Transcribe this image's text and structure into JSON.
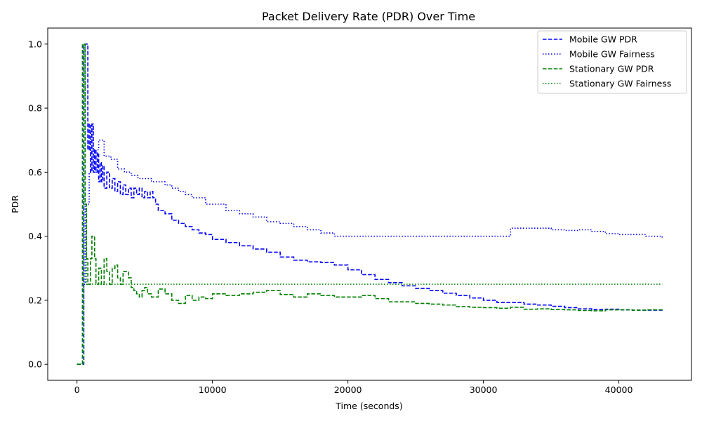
{
  "chart_data": {
    "type": "line",
    "title": "Packet Delivery Rate (PDR) Over Time",
    "xlabel": "Time (seconds)",
    "ylabel": "PDR",
    "xlim": [
      -2160,
      45360
    ],
    "ylim": [
      -0.05,
      1.05
    ],
    "xticks": [
      0,
      10000,
      20000,
      30000,
      40000
    ],
    "yticks": [
      0.0,
      0.2,
      0.4,
      0.6,
      0.8,
      1.0
    ],
    "xtick_labels": [
      "0",
      "10000",
      "20000",
      "30000",
      "40000"
    ],
    "ytick_labels": [
      "0.0",
      "0.2",
      "0.4",
      "0.6",
      "0.8",
      "1.0"
    ],
    "grid": false,
    "legend_position": "top-right",
    "series": [
      {
        "name": "Mobile GW PDR",
        "color": "#0000ff",
        "dash": "dashed",
        "x": [
          0,
          200,
          400,
          500,
          600,
          700,
          800,
          900,
          1000,
          1100,
          1200,
          1300,
          1400,
          1500,
          1600,
          1700,
          1800,
          1900,
          2000,
          2200,
          2400,
          2600,
          2800,
          3000,
          3200,
          3400,
          3600,
          3800,
          4000,
          4200,
          4400,
          4600,
          4800,
          5000,
          5200,
          5400,
          5600,
          5800,
          6000,
          6500,
          7000,
          7500,
          8000,
          8500,
          9000,
          9500,
          10000,
          11000,
          12000,
          13000,
          14000,
          15000,
          16000,
          17000,
          18000,
          19000,
          20000,
          21000,
          22000,
          23000,
          24000,
          25000,
          26000,
          27000,
          28000,
          29000,
          30000,
          31000,
          32000,
          33000,
          34000,
          35000,
          36000,
          37000,
          38000,
          39000,
          40000,
          41000,
          42000,
          43200
        ],
        "y": [
          0.0,
          0.0,
          0.0,
          1.0,
          1.0,
          1.0,
          0.67,
          0.75,
          0.6,
          0.75,
          0.6,
          0.67,
          0.6,
          0.66,
          0.57,
          0.63,
          0.57,
          0.62,
          0.55,
          0.6,
          0.55,
          0.58,
          0.54,
          0.57,
          0.53,
          0.56,
          0.53,
          0.55,
          0.52,
          0.55,
          0.53,
          0.55,
          0.52,
          0.54,
          0.52,
          0.54,
          0.52,
          0.5,
          0.48,
          0.47,
          0.45,
          0.44,
          0.43,
          0.42,
          0.41,
          0.405,
          0.39,
          0.38,
          0.37,
          0.36,
          0.35,
          0.335,
          0.325,
          0.32,
          0.318,
          0.31,
          0.295,
          0.28,
          0.265,
          0.255,
          0.245,
          0.237,
          0.23,
          0.222,
          0.215,
          0.207,
          0.2,
          0.193,
          0.193,
          0.188,
          0.185,
          0.181,
          0.177,
          0.173,
          0.171,
          0.172,
          0.17,
          0.169,
          0.169,
          0.168
        ]
      },
      {
        "name": "Mobile GW Fairness",
        "color": "#0000ff",
        "dash": "dotted",
        "x": [
          0,
          200,
          400,
          500,
          600,
          700,
          800,
          900,
          1000,
          1100,
          1200,
          1400,
          1600,
          1800,
          2000,
          2500,
          3000,
          3500,
          4000,
          4500,
          5000,
          5500,
          6000,
          6500,
          7000,
          7500,
          8000,
          8500,
          9000,
          9500,
          10000,
          11000,
          12000,
          13000,
          14000,
          15000,
          16000,
          17000,
          18000,
          19000,
          20000,
          21000,
          22000,
          23000,
          24000,
          25000,
          26000,
          27000,
          28000,
          29000,
          30000,
          31000,
          31900,
          32000,
          33000,
          34000,
          35000,
          36000,
          37000,
          38000,
          39000,
          40000,
          41000,
          42000,
          43200
        ],
        "y": [
          0.0,
          0.0,
          0.0,
          0.25,
          0.5,
          0.5,
          0.5,
          0.6,
          0.7,
          0.75,
          0.6,
          0.67,
          0.7,
          0.7,
          0.65,
          0.64,
          0.61,
          0.6,
          0.59,
          0.58,
          0.58,
          0.57,
          0.57,
          0.56,
          0.55,
          0.54,
          0.53,
          0.52,
          0.52,
          0.5,
          0.5,
          0.48,
          0.47,
          0.46,
          0.445,
          0.44,
          0.43,
          0.42,
          0.41,
          0.4,
          0.4,
          0.4,
          0.4,
          0.4,
          0.4,
          0.4,
          0.4,
          0.4,
          0.4,
          0.4,
          0.4,
          0.4,
          0.4,
          0.425,
          0.425,
          0.425,
          0.42,
          0.418,
          0.42,
          0.415,
          0.408,
          0.405,
          0.405,
          0.4,
          0.395
        ]
      },
      {
        "name": "Stationary GW PDR",
        "color": "#008000",
        "dash": "dashed",
        "x": [
          0,
          200,
          300,
          400,
          500,
          600,
          700,
          800,
          900,
          1000,
          1100,
          1200,
          1300,
          1400,
          1600,
          1800,
          2000,
          2200,
          2400,
          2600,
          2800,
          3000,
          3200,
          3400,
          3600,
          3800,
          4000,
          4200,
          4400,
          4600,
          4800,
          5000,
          5200,
          5500,
          6000,
          6500,
          7000,
          7500,
          8000,
          8500,
          9000,
          9500,
          10000,
          11000,
          12000,
          13000,
          14000,
          15000,
          16000,
          17000,
          18000,
          19000,
          20000,
          21000,
          22000,
          23000,
          24000,
          25000,
          26000,
          27000,
          28000,
          29000,
          30000,
          31000,
          32000,
          33000,
          34000,
          35000,
          36000,
          37000,
          38000,
          39000,
          40000,
          41000,
          42000,
          43200
        ],
        "y": [
          0.0,
          0.0,
          0.0,
          1.0,
          1.0,
          0.5,
          0.33,
          0.25,
          0.25,
          0.33,
          0.4,
          0.4,
          0.33,
          0.25,
          0.3,
          0.25,
          0.33,
          0.29,
          0.25,
          0.3,
          0.31,
          0.27,
          0.25,
          0.29,
          0.29,
          0.27,
          0.24,
          0.23,
          0.22,
          0.21,
          0.23,
          0.24,
          0.22,
          0.21,
          0.235,
          0.22,
          0.2,
          0.19,
          0.215,
          0.2,
          0.21,
          0.205,
          0.22,
          0.215,
          0.22,
          0.225,
          0.23,
          0.218,
          0.21,
          0.22,
          0.215,
          0.21,
          0.21,
          0.215,
          0.205,
          0.195,
          0.195,
          0.19,
          0.188,
          0.185,
          0.18,
          0.178,
          0.177,
          0.175,
          0.178,
          0.172,
          0.173,
          0.171,
          0.17,
          0.168,
          0.167,
          0.17,
          0.17,
          0.169,
          0.17,
          0.168
        ]
      },
      {
        "name": "Stationary GW Fairness",
        "color": "#008000",
        "dash": "dotted",
        "x": [
          0,
          200,
          400,
          500,
          600,
          700,
          800,
          1000,
          43200
        ],
        "y": [
          0.0,
          0.0,
          0.0,
          1.0,
          0.5,
          0.25,
          0.25,
          0.25,
          0.25
        ]
      }
    ]
  }
}
